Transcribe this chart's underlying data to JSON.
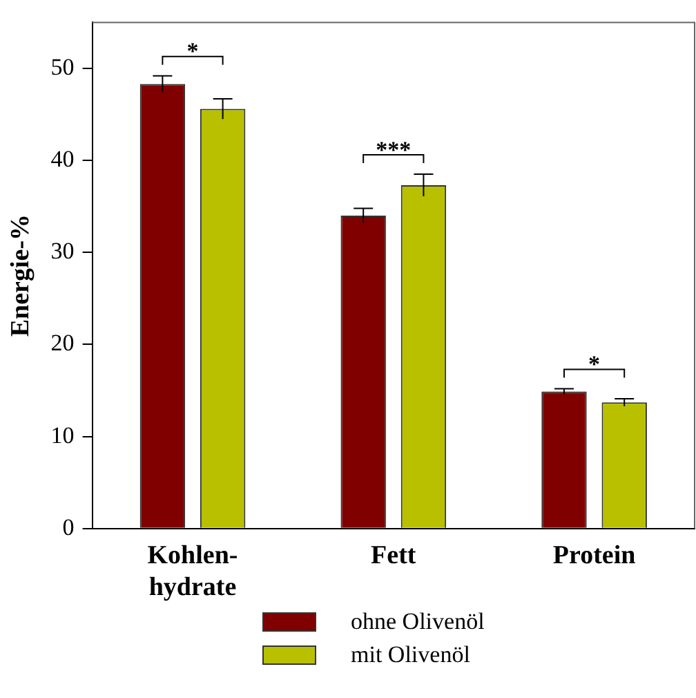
{
  "chart_data": {
    "type": "bar",
    "ylabel": "Energie-%",
    "categories": [
      "Kohlen-hydrate",
      "Fett",
      "Protein"
    ],
    "series": [
      {
        "name": "ohne Olivenöl",
        "color": "#800000",
        "values": [
          48.3,
          34.0,
          14.9
        ],
        "errors": [
          0.9,
          0.8,
          0.3
        ]
      },
      {
        "name": "mit Olivenöl",
        "color": "#b8c000",
        "values": [
          45.6,
          37.3,
          13.7
        ],
        "errors": [
          1.1,
          1.2,
          0.4
        ]
      }
    ],
    "ylim": [
      0,
      55
    ],
    "yticks": [
      0,
      10,
      20,
      30,
      40,
      50
    ],
    "grid": false,
    "legend": "bottom",
    "annotations": [
      "*",
      "***",
      "*"
    ]
  }
}
